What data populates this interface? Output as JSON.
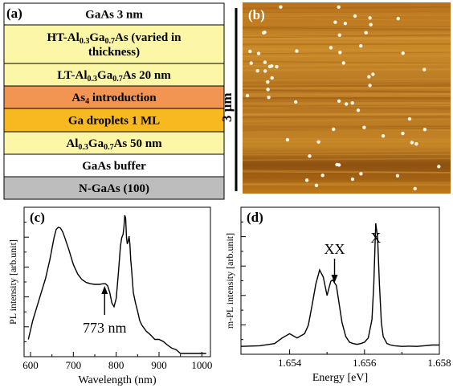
{
  "panel_a": {
    "label": "(a)",
    "layers": [
      {
        "lines": [
          [
            "GaAs 3 nm"
          ]
        ],
        "color": "#ffffff"
      },
      {
        "lines": [
          [
            "HT-Al",
            "0.3",
            "Ga",
            "0.7",
            "As (varied in"
          ],
          [
            "thickness)"
          ]
        ],
        "color": "#fbf7a6"
      },
      {
        "lines": [
          [
            "LT-Al",
            "0.3",
            "Ga",
            "0.7",
            "As 20 nm"
          ]
        ],
        "color": "#fbf7a6"
      },
      {
        "lines": [
          [
            "As",
            "4",
            " introduction"
          ]
        ],
        "color": "#f29553"
      },
      {
        "lines": [
          [
            "Ga droplets 1 ML"
          ]
        ],
        "color": "#f8b820"
      },
      {
        "lines": [
          [
            "Al",
            "0.3",
            "Ga",
            "0.7",
            "As 50 nm"
          ]
        ],
        "color": "#fbf7a6"
      },
      {
        "lines": [
          [
            "GaAs buffer"
          ]
        ],
        "color": "#ffffff"
      },
      {
        "lines": [
          [
            "N-GaAs (100)"
          ]
        ],
        "color": "#bdbdbd"
      }
    ]
  },
  "panel_b": {
    "label": "(b)",
    "scale_label": "3 μm"
  },
  "chart_data": [
    {
      "type": "line",
      "panel": "(c)",
      "xlabel": "Wavelength (nm)",
      "ylabel": "PL intensity [arb.unit]",
      "xlim": [
        585,
        1020
      ],
      "xticks": [
        600,
        700,
        800,
        900,
        1000
      ],
      "y_scale": "log",
      "annotation": {
        "text": "773 nm",
        "x": 773
      },
      "series": [
        {
          "x": [
            595,
            605,
            615,
            625,
            635,
            645,
            655,
            660,
            665,
            670,
            675,
            680,
            690,
            700,
            710,
            720,
            730,
            740,
            750,
            760,
            770,
            775,
            780,
            785,
            790,
            795,
            800,
            805,
            810,
            813,
            816,
            818,
            820,
            822,
            824,
            826,
            828,
            830,
            832,
            834,
            836,
            838,
            840,
            845,
            850,
            855,
            860,
            870,
            880,
            890,
            900,
            910,
            920,
            930,
            940,
            950,
            960,
            970,
            980,
            990,
            1000,
            1010
          ],
          "y": [
            0.02,
            0.05,
            0.1,
            0.2,
            0.4,
            1.0,
            3.0,
            4.5,
            5.0,
            4.8,
            4.0,
            3.0,
            1.6,
            0.8,
            0.5,
            0.38,
            0.33,
            0.31,
            0.3,
            0.3,
            0.31,
            0.31,
            0.28,
            0.2,
            0.12,
            0.1,
            0.15,
            0.5,
            2.0,
            3.0,
            3.5,
            5.0,
            9.0,
            8.0,
            3.0,
            2.2,
            2.5,
            3.2,
            2.2,
            1.0,
            0.6,
            0.35,
            0.2,
            0.12,
            0.08,
            0.05,
            0.04,
            0.03,
            0.025,
            0.02,
            0.02,
            0.018,
            0.015,
            0.013,
            0.012,
            0.01,
            0.01,
            0.01,
            0.01,
            0.01,
            0.01,
            0.01
          ]
        }
      ]
    },
    {
      "type": "line",
      "panel": "(d)",
      "xlabel": "Energy [eV]",
      "ylabel": "m-PL intensity [arb.unit]",
      "xlim": [
        1.6527,
        1.658
      ],
      "xticks": [
        1.654,
        1.656,
        1.658
      ],
      "annotations": [
        {
          "text": "XX",
          "x": 1.6552
        },
        {
          "text": "X",
          "x": 1.6563
        }
      ],
      "series": [
        {
          "x": [
            1.6527,
            1.6532,
            1.6536,
            1.6538,
            1.654,
            1.6542,
            1.6544,
            1.6545,
            1.6546,
            1.6547,
            1.6548,
            1.6549,
            1.655,
            1.65505,
            1.6551,
            1.65515,
            1.6552,
            1.65525,
            1.6553,
            1.6554,
            1.6555,
            1.6556,
            1.6557,
            1.6558,
            1.6559,
            1.656,
            1.6561,
            1.6562,
            1.65625,
            1.6563,
            1.65635,
            1.6564,
            1.65645,
            1.6565,
            1.6566,
            1.6567,
            1.6568,
            1.657,
            1.6572,
            1.6574,
            1.6576,
            1.6578,
            1.658
          ],
          "y": [
            0.01,
            0.015,
            0.03,
            0.07,
            0.1,
            0.07,
            0.1,
            0.16,
            0.3,
            0.45,
            0.55,
            0.5,
            0.37,
            0.42,
            0.47,
            0.48,
            0.46,
            0.44,
            0.35,
            0.18,
            0.08,
            0.04,
            0.03,
            0.025,
            0.03,
            0.04,
            0.07,
            0.2,
            0.45,
            0.88,
            0.78,
            0.45,
            0.18,
            0.08,
            0.03,
            0.02,
            0.015,
            0.01,
            0.012,
            0.01,
            0.015,
            0.02,
            0.02
          ]
        }
      ]
    }
  ],
  "colors": {
    "line": "#000000",
    "afm_base": "#c07a1a"
  }
}
